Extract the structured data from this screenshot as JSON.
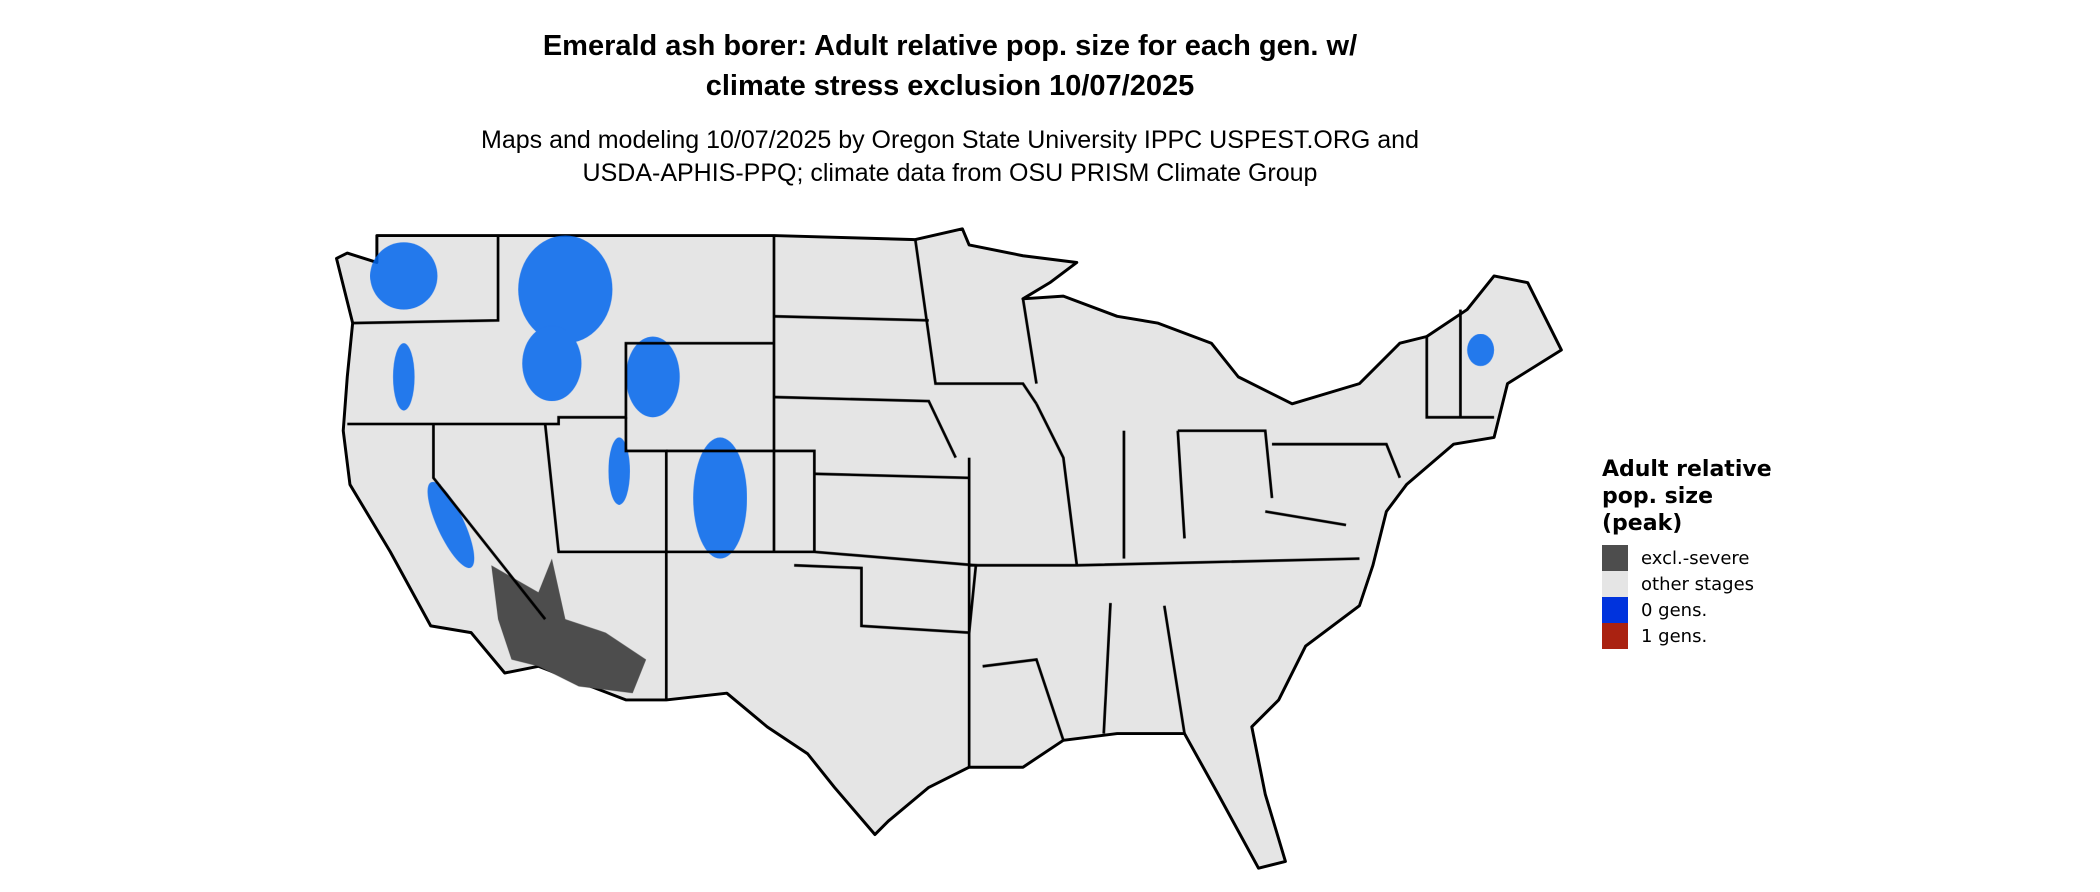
{
  "title_lines": [
    "Emerald ash borer: Adult relative pop. size for each gen. w/",
    "climate stress exclusion 10/07/2025"
  ],
  "subtitle_lines": [
    "Maps and modeling 10/07/2025 by Oregon State University IPPC USPEST.ORG and",
    "USDA-APHIS-PPQ; climate data from OSU PRISM Climate Group"
  ],
  "legend": {
    "title_lines": [
      "Adult relative",
      "pop. size",
      "(peak)"
    ],
    "items": [
      {
        "label": "excl.-severe",
        "color": "#4d4d4d"
      },
      {
        "label": "other stages",
        "color": "#e5e5e5"
      },
      {
        "label": "0 gens.",
        "color": "#0033dd"
      },
      {
        "label": "1 gens.",
        "color": "#aa2211"
      }
    ]
  },
  "map": {
    "region": "Contiguous United States",
    "land_color": "#e5e5e5",
    "border_color": "#000000",
    "patch_colors": {
      "zero_gens": "#0066ee",
      "excluded": "#4d4d4d"
    }
  }
}
